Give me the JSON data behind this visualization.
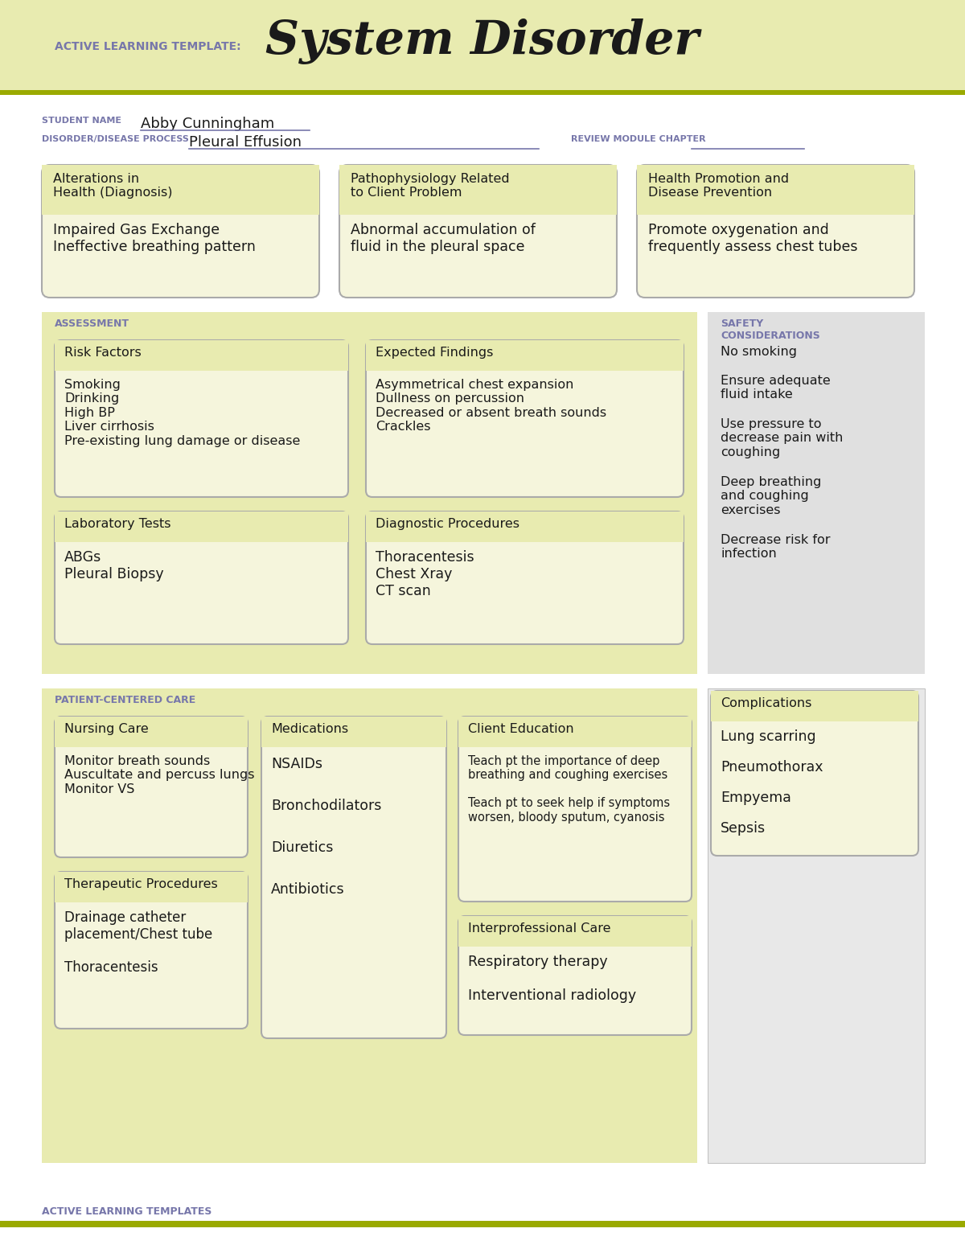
{
  "bg_header": "#e8ebb0",
  "bg_white": "#ffffff",
  "bg_section": "#e8ebb0",
  "bg_box": "#f5f5dc",
  "border_color": "#aaaaaa",
  "olive_line": "#9aaa00",
  "purple_label": "#7777aa",
  "title_main": "System Disorder",
  "title_prefix": "ACTIVE LEARNING TEMPLATE:",
  "student_label": "STUDENT NAME",
  "student_name": "Abby Cunningham",
  "disorder_label": "DISORDER/DISEASE PROCESS",
  "disorder_name": "Pleural Effusion",
  "review_label": "REVIEW MODULE CHAPTER",
  "top_boxes": [
    {
      "title": "Alterations in\nHealth (Diagnosis)",
      "content": "Impaired Gas Exchange\nIneffective breathing pattern"
    },
    {
      "title": "Pathophysiology Related\nto Client Problem",
      "content": "Abnormal accumulation of\nfluid in the pleural space"
    },
    {
      "title": "Health Promotion and\nDisease Prevention",
      "content": "Promote oxygenation and\nfrequently assess chest tubes"
    }
  ],
  "assessment_label": "ASSESSMENT",
  "safety_label": "SAFETY\nCONSIDERATIONS",
  "risk_factors_title": "Risk Factors",
  "risk_factors_content": "Smoking\nDrinking\nHigh BP\nLiver cirrhosis\nPre-existing lung damage or disease",
  "expected_findings_title": "Expected Findings",
  "expected_findings_content": "Asymmetrical chest expansion\nDullness on percussion\nDecreased or absent breath sounds\nCrackles",
  "lab_tests_title": "Laboratory Tests",
  "lab_tests_content": "ABGs\nPleural Biopsy",
  "diag_proc_title": "Diagnostic Procedures",
  "diag_proc_content": "Thoracentesis\nChest Xray\nCT scan",
  "safety_items": [
    "No smoking",
    "Ensure adequate\nfluid intake",
    "Use pressure to\ndecrease pain with\ncoughing",
    "Deep breathing\nand coughing\nexercises",
    "Decrease risk for\ninfection"
  ],
  "patient_care_label": "PATIENT-CENTERED CARE",
  "complications_title": "Complications",
  "complications_items": [
    "Lung scarring",
    "Pneumothorax",
    "Empyema",
    "Sepsis"
  ],
  "nursing_care_title": "Nursing Care",
  "nursing_care_content": "Monitor breath sounds\nAuscultate and percuss lungs\nMonitor VS",
  "medications_title": "Medications",
  "medications_items": [
    "NSAIDs",
    "Bronchodilators",
    "Diuretics",
    "Antibiotics"
  ],
  "client_edu_title": "Client Education",
  "client_edu_content": "Teach pt the importance of deep\nbreathing and coughing exercises\n\nTeach pt to seek help if symptoms\nworsen, bloody sputum, cyanosis",
  "therapeutic_proc_title": "Therapeutic Procedures",
  "therapeutic_proc_content": "Drainage catheter\nplacement/Chest tube\n\nThoracentesis",
  "interpro_care_title": "Interprofessional Care",
  "interpro_care_content": "Respiratory therapy\n\nInterventional radiology",
  "footer_text": "ACTIVE LEARNING TEMPLATES"
}
